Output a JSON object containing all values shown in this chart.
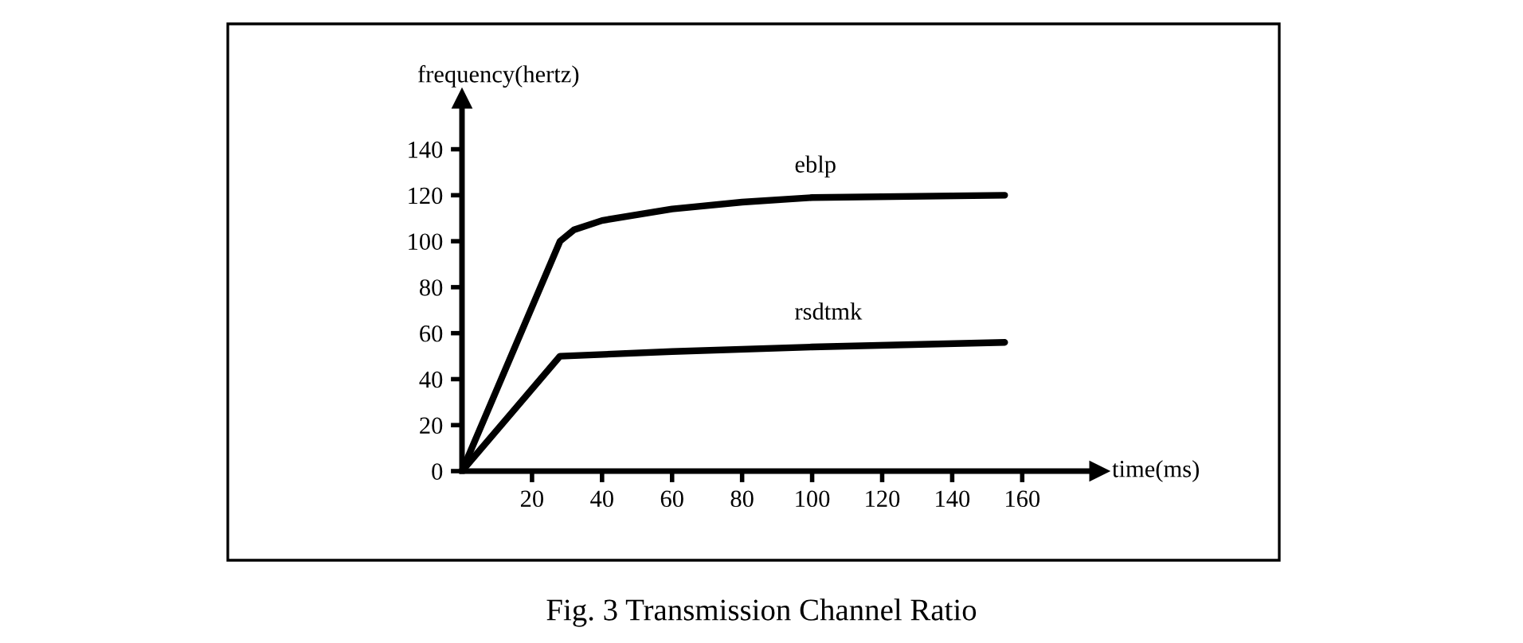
{
  "chart_data": {
    "type": "line",
    "xlabel": "time(ms)",
    "ylabel": "frequency(hertz)",
    "xlim": [
      0,
      182
    ],
    "ylim": [
      0,
      162
    ],
    "xticks": [
      20,
      40,
      60,
      80,
      100,
      120,
      140,
      160
    ],
    "yticks": [
      0,
      20,
      40,
      60,
      80,
      100,
      120,
      140
    ],
    "grid": false,
    "legend": false,
    "marker": "none",
    "line_style": "solid",
    "series": [
      {
        "name": "eblp",
        "color": "#000000",
        "x": [
          0,
          28,
          32,
          40,
          60,
          80,
          100,
          155
        ],
        "values": [
          0,
          100,
          105,
          109,
          114,
          117,
          119,
          120
        ]
      },
      {
        "name": "rsdtmk",
        "color": "#000000",
        "x": [
          0,
          28,
          60,
          100,
          155
        ],
        "values": [
          0,
          50,
          52,
          54,
          56
        ]
      }
    ],
    "annotations": [
      "Fig. 3 Transmission Channel Ratio"
    ]
  }
}
